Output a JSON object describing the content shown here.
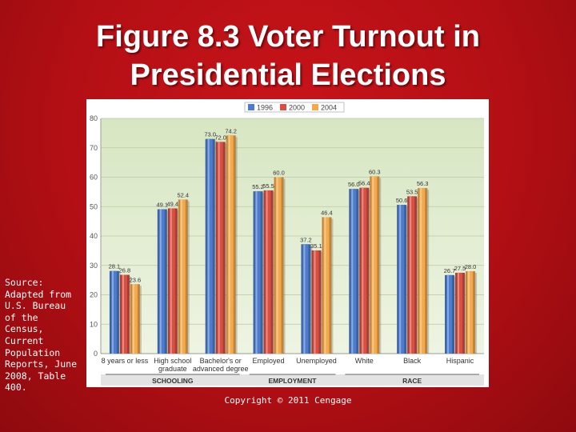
{
  "slide": {
    "title_line1": "Figure 8.3  Voter Turnout in",
    "title_line2": "Presidential Elections",
    "source": "Source: Adapted from U.S. Bureau of the Census, Current Population Reports, June 2008, Table 400.",
    "copyright": "Copyright © 2011 Cengage"
  },
  "colors": {
    "background": "#b30f14",
    "plot_background": "#dde9c8",
    "series": [
      "#4d7ccd",
      "#d84f43",
      "#f4a94b"
    ]
  },
  "chart_data": {
    "type": "bar",
    "title": "",
    "xlabel": "",
    "ylabel": "",
    "ylim": [
      0,
      80
    ],
    "yticks": [
      "0",
      "10",
      "20",
      "30",
      "40",
      "50",
      "60",
      "70",
      "80"
    ],
    "grid": true,
    "legend_position": "top-center",
    "categories": [
      "8 years or less",
      "High school graduate",
      "Bachelor's or advanced degree",
      "Employed",
      "Unemployed",
      "White",
      "Black",
      "Hispanic"
    ],
    "category_labels": [
      [
        "8 years or less"
      ],
      [
        "High school",
        "graduate"
      ],
      [
        "Bachelor's or",
        "advanced degree"
      ],
      [
        "Employed"
      ],
      [
        "Unemployed"
      ],
      [
        "White"
      ],
      [
        "Black"
      ],
      [
        "Hispanic"
      ]
    ],
    "groups": [
      {
        "label": "SCHOOLING",
        "categories": [
          0,
          1,
          2
        ]
      },
      {
        "label": "EMPLOYMENT",
        "categories": [
          3,
          4
        ]
      },
      {
        "label": "RACE",
        "categories": [
          5,
          6,
          7
        ]
      }
    ],
    "series": [
      {
        "name": "1996",
        "values": [
          28.1,
          49.1,
          73.0,
          55.2,
          37.2,
          56.0,
          50.6,
          26.7
        ]
      },
      {
        "name": "2000",
        "values": [
          26.8,
          49.4,
          72.0,
          55.5,
          35.1,
          56.4,
          53.5,
          27.5
        ]
      },
      {
        "name": "2004",
        "values": [
          23.6,
          52.4,
          74.2,
          60.0,
          46.4,
          60.3,
          56.3,
          28.0
        ]
      }
    ]
  }
}
